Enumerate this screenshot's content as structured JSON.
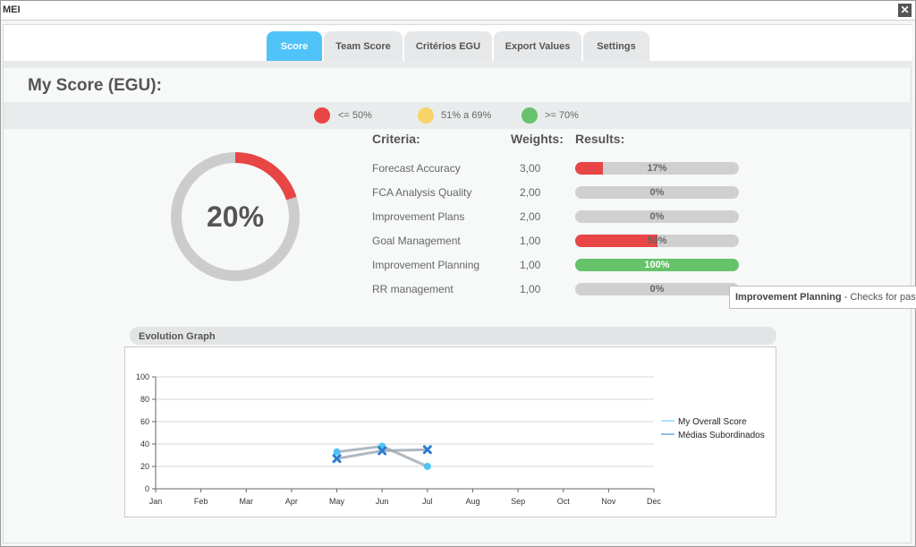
{
  "window": {
    "title": "MEI",
    "close_symbol": "✕"
  },
  "tabs": [
    {
      "label": "Score",
      "active": true
    },
    {
      "label": "Team Score",
      "active": false
    },
    {
      "label": "Critérios EGU",
      "active": false
    },
    {
      "label": "Export Values",
      "active": false
    },
    {
      "label": "Settings",
      "active": false
    }
  ],
  "page_title": "My Score (EGU):",
  "thresholds": [
    {
      "label": "<= 50%",
      "color": "#e84545"
    },
    {
      "label": "51% a 69%",
      "color": "#f7d36a"
    },
    {
      "label": ">= 70%",
      "color": "#66c26b"
    }
  ],
  "overall": {
    "value_label": "20%",
    "fraction": 0.2,
    "color": "#e84545",
    "track_color": "#cccccc"
  },
  "criteria_table": {
    "headers": {
      "criteria": "Criteria:",
      "weights": "Weights:",
      "results": "Results:"
    },
    "rows": [
      {
        "name": "Forecast Accuracy",
        "weight": "3,00",
        "result_label": "17%",
        "fraction": 0.17,
        "color": "#e84545"
      },
      {
        "name": "FCA Analysis Quality",
        "weight": "2,00",
        "result_label": "0%",
        "fraction": 0.0,
        "color": "#e84545"
      },
      {
        "name": "Improvement Plans",
        "weight": "2,00",
        "result_label": "0%",
        "fraction": 0.0,
        "color": "#e84545"
      },
      {
        "name": "Goal Management",
        "weight": "1,00",
        "result_label": "50%",
        "fraction": 0.5,
        "color": "#e84545"
      },
      {
        "name": "Improvement Planning",
        "weight": "1,00",
        "result_label": "100%",
        "fraction": 1.0,
        "color": "#66c26b"
      },
      {
        "name": "RR management",
        "weight": "1,00",
        "result_label": "0%",
        "fraction": 0.0,
        "color": "#e84545"
      }
    ]
  },
  "tooltip": {
    "title": "Improvement Planning",
    "text": " - Checks for past c"
  },
  "evolution_graph": {
    "header": "Evolution Graph",
    "chart_data": {
      "type": "line",
      "categories": [
        "Jan",
        "Feb",
        "Mar",
        "Apr",
        "May",
        "Jun",
        "Jul",
        "Aug",
        "Sep",
        "Oct",
        "Nov",
        "Dec"
      ],
      "ylim": [
        0,
        100
      ],
      "yticks": [
        "0",
        "20",
        "40",
        "60",
        "80",
        "100"
      ],
      "grid": true,
      "legend_position": "right",
      "series": [
        {
          "name": "My Overall Score",
          "marker": "circle",
          "color": "#4fc3f7",
          "values": [
            null,
            null,
            null,
            null,
            33,
            38,
            20,
            null,
            null,
            null,
            null,
            null
          ]
        },
        {
          "name": "Médias Subordinados",
          "marker": "x",
          "color": "#2b7bd1",
          "values": [
            null,
            null,
            null,
            null,
            27,
            34,
            35,
            null,
            null,
            null,
            null,
            null
          ]
        }
      ]
    }
  }
}
